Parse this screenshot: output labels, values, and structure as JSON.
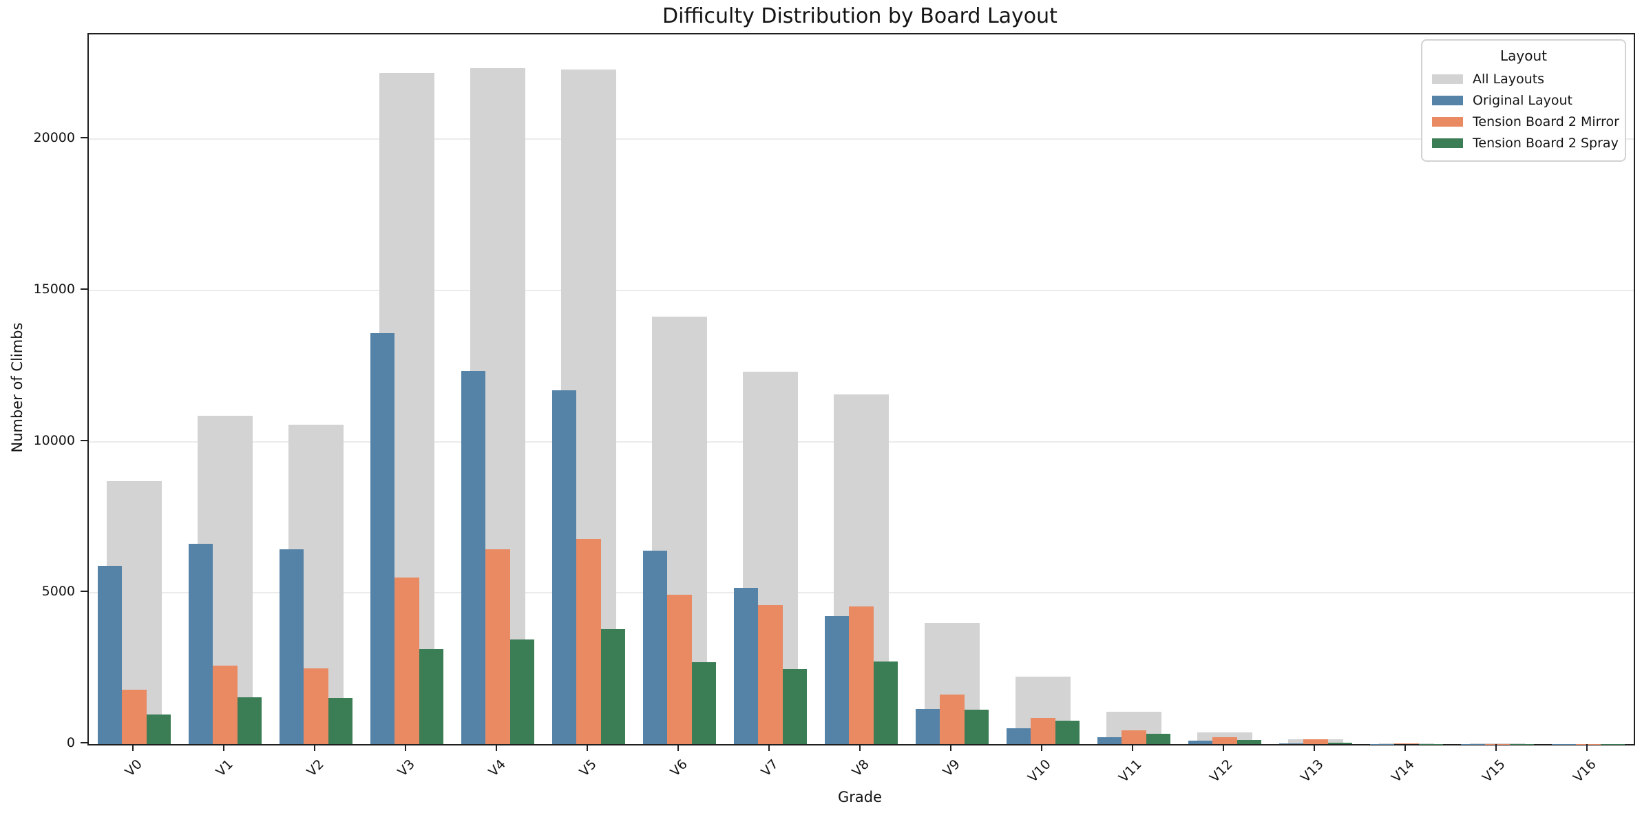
{
  "figure": {
    "title": "Difficulty Distribution by Board Layout",
    "xlabel": "Grade",
    "ylabel": "Number of Climbs"
  },
  "legend": {
    "title": "Layout"
  },
  "chart_data": {
    "type": "bar",
    "title": "Difficulty Distribution by Board Layout",
    "xlabel": "Grade",
    "ylabel": "Number of Climbs",
    "categories": [
      "V0",
      "V1",
      "V2",
      "V3",
      "V4",
      "V5",
      "V6",
      "V7",
      "V8",
      "V9",
      "V10",
      "V11",
      "V12",
      "V13",
      "V14",
      "V15",
      "V16"
    ],
    "series": [
      {
        "name": "All Layouts",
        "color": "#d3d3d3",
        "role": "background",
        "values": [
          8700,
          10850,
          10550,
          22200,
          22340,
          22300,
          14140,
          12320,
          11560,
          4000,
          2230,
          1060,
          390,
          170,
          30,
          12,
          8
        ]
      },
      {
        "name": "Original Layout",
        "color": "#5583a8",
        "role": "group",
        "values": [
          5890,
          6630,
          6450,
          13590,
          12340,
          11690,
          6400,
          5160,
          4230,
          1150,
          520,
          230,
          110,
          30,
          10,
          5,
          3
        ]
      },
      {
        "name": "Tension Board 2 Mirror",
        "color": "#e98a63",
        "role": "group",
        "values": [
          1800,
          2600,
          2500,
          5510,
          6450,
          6780,
          4950,
          4590,
          4550,
          1650,
          870,
          450,
          230,
          150,
          25,
          8,
          5
        ]
      },
      {
        "name": "Tension Board 2 Spray",
        "color": "#3b7d55",
        "role": "group",
        "values": [
          980,
          1550,
          1530,
          3130,
          3450,
          3800,
          2700,
          2480,
          2730,
          1130,
          770,
          340,
          130,
          45,
          8,
          4,
          2
        ]
      }
    ],
    "yticks": [
      0,
      5000,
      10000,
      15000,
      20000
    ],
    "ylim": [
      0,
      23465
    ],
    "grid": "horizontal",
    "legend_title": "Layout",
    "legend_position": "upper right",
    "tick_label_rotation": 45
  }
}
